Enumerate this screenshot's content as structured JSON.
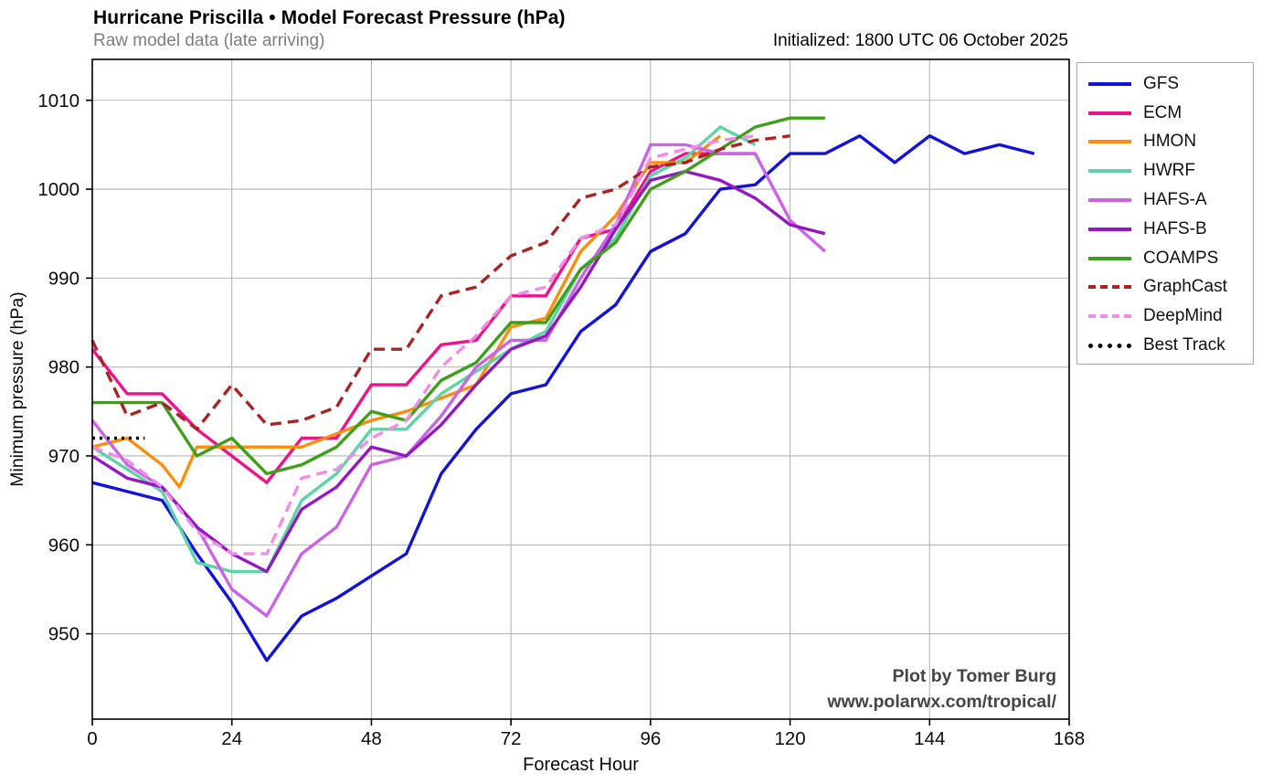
{
  "attribution": {
    "line1": "Plot by Tomer Burg",
    "line2": "www.polarwx.com/tropical/"
  },
  "chart_data": {
    "type": "line",
    "title": "Hurricane Priscilla • Model Forecast Pressure (hPa)",
    "subtitle": "Raw model data (late arriving)",
    "initialized": "Initialized: 1800 UTC 06 October 2025",
    "xlabel": "Forecast Hour",
    "ylabel": "Minimum pressure (hPa)",
    "xlim": [
      0,
      168
    ],
    "ylim": [
      940.4,
      1014.6
    ],
    "xticks": [
      0,
      24,
      48,
      72,
      96,
      120,
      144,
      168
    ],
    "yticks": [
      950,
      960,
      970,
      980,
      990,
      1000,
      1010
    ],
    "grid": true,
    "grid_color": "#b5b5b5",
    "legend_position": "outside-right",
    "series": [
      {
        "name": "GFS",
        "color": "#1212db",
        "style": "solid",
        "x": [
          0,
          6,
          12,
          18,
          24,
          30,
          36,
          42,
          48,
          54,
          60,
          66,
          72,
          78,
          84,
          90,
          96,
          102,
          108,
          114,
          120,
          126,
          132,
          138,
          144,
          150,
          156,
          162
        ],
        "y": [
          967,
          966,
          965,
          959,
          953.5,
          947,
          952,
          954,
          956.5,
          959,
          968,
          973,
          977,
          978,
          984,
          987,
          993,
          995,
          1000,
          1000.5,
          1004,
          1004,
          1006,
          1003,
          1006,
          1004,
          1005,
          1004
        ]
      },
      {
        "name": "ECM",
        "color": "#f0128a",
        "style": "solid",
        "x": [
          0,
          6,
          12,
          18,
          24,
          30,
          36,
          42,
          48,
          54,
          60,
          66,
          72,
          78,
          84,
          90,
          96,
          102,
          108,
          114
        ],
        "y": [
          982,
          977,
          977,
          973,
          970,
          967,
          972,
          972,
          978,
          978,
          982.5,
          983,
          988,
          988,
          994.5,
          995.5,
          1002,
          1004,
          1004,
          1004
        ]
      },
      {
        "name": "HMON",
        "color": "#fc8d0d",
        "style": "solid",
        "x": [
          0,
          6,
          12,
          15,
          18,
          24,
          30,
          36,
          42,
          48,
          54,
          60,
          66,
          72,
          78,
          84,
          90,
          96,
          102,
          108
        ],
        "y": [
          971,
          972,
          969,
          966.5,
          971,
          971,
          971,
          971,
          972.5,
          974,
          975,
          976.5,
          978,
          984.5,
          985.5,
          993,
          997,
          1003,
          1003,
          1006
        ]
      },
      {
        "name": "HWRF",
        "color": "#5ed3a6",
        "style": "solid",
        "x": [
          0,
          6,
          12,
          18,
          24,
          30,
          36,
          42,
          48,
          54,
          60,
          66,
          72,
          78,
          84,
          90,
          96,
          102,
          108,
          114
        ],
        "y": [
          971,
          968.5,
          966,
          958,
          957,
          957,
          965,
          968,
          973,
          973,
          977,
          979.5,
          982,
          984,
          991,
          994.5,
          1001.5,
          1003.5,
          1007,
          1005
        ]
      },
      {
        "name": "HAFS-A",
        "color": "#cb63e6",
        "style": "solid",
        "x": [
          0,
          6,
          12,
          18,
          24,
          30,
          36,
          42,
          48,
          54,
          60,
          66,
          72,
          78,
          84,
          90,
          96,
          102,
          108,
          114,
          120,
          126
        ],
        "y": [
          974,
          969,
          966.5,
          962,
          955,
          952,
          959,
          962,
          969,
          970,
          974.5,
          980,
          983,
          983,
          990,
          996,
          1005,
          1005,
          1004,
          1004,
          996.5,
          993
        ]
      },
      {
        "name": "HAFS-B",
        "color": "#9417c2",
        "style": "solid",
        "x": [
          0,
          6,
          12,
          18,
          24,
          30,
          36,
          42,
          48,
          54,
          60,
          66,
          72,
          78,
          84,
          90,
          96,
          102,
          108,
          114,
          120,
          126
        ],
        "y": [
          970,
          967.5,
          966.5,
          962,
          959,
          957,
          964,
          966.5,
          971,
          970,
          973.5,
          978,
          982,
          983.5,
          989,
          995.5,
          1001,
          1002,
          1001,
          999,
          996,
          995
        ]
      },
      {
        "name": "COAMPS",
        "color": "#3f9e1c",
        "style": "solid",
        "x": [
          0,
          6,
          12,
          18,
          24,
          30,
          36,
          42,
          48,
          54,
          60,
          66,
          72,
          78,
          84,
          90,
          96,
          102,
          108,
          114,
          120,
          126
        ],
        "y": [
          976,
          976,
          976,
          970,
          972,
          968,
          969,
          971,
          975,
          974,
          978.5,
          980.5,
          985,
          985,
          991,
          994,
          1000,
          1002,
          1004.5,
          1007,
          1008,
          1008
        ]
      },
      {
        "name": "GraphCast",
        "color": "#a82323",
        "style": "dashed",
        "x": [
          0,
          6,
          12,
          18,
          24,
          30,
          36,
          42,
          48,
          54,
          60,
          66,
          72,
          78,
          84,
          90,
          96,
          102,
          108,
          114,
          120
        ],
        "y": [
          983,
          974.5,
          976,
          973,
          978,
          973.5,
          974,
          975.5,
          982,
          982,
          988,
          989,
          992.5,
          994,
          999,
          1000,
          1002.5,
          1003,
          1004.5,
          1005.5,
          1006
        ]
      },
      {
        "name": "DeepMind",
        "color": "#ef8de8",
        "style": "dashed",
        "x": [
          0,
          6,
          12,
          18,
          24,
          30,
          36,
          42,
          48,
          54,
          60,
          66,
          72,
          78,
          84,
          90,
          96,
          102,
          108,
          114
        ],
        "y": [
          971,
          969.5,
          966.5,
          961.5,
          959,
          959,
          967.5,
          968.5,
          972,
          974,
          980,
          983.5,
          988,
          989,
          994.5,
          996,
          1003.5,
          1004.5,
          1005.5,
          1006
        ]
      },
      {
        "name": "Best Track",
        "color": "#000000",
        "style": "dotted",
        "x": [
          0,
          3,
          6,
          9
        ],
        "y": [
          972,
          972,
          972,
          972
        ]
      }
    ]
  }
}
